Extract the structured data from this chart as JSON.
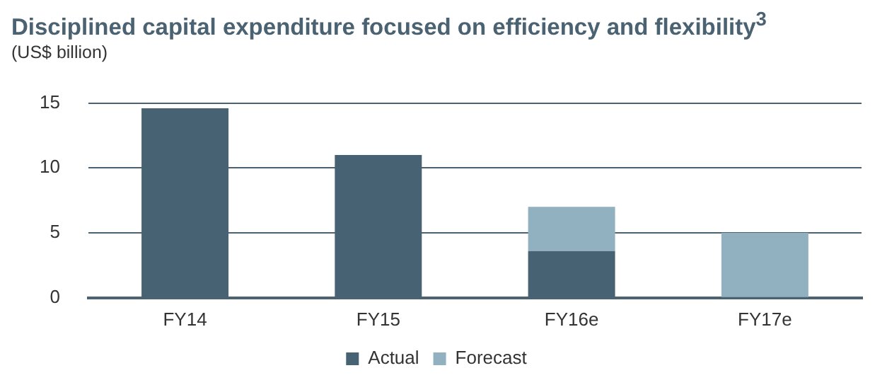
{
  "chart_data": {
    "type": "bar",
    "title": "Disciplined capital expenditure focused on efficiency and flexibility$^{3}$",
    "ylabel": "(US$ billion)",
    "categories": [
      "FY14",
      "FY15",
      "FY16e",
      "FY17e"
    ],
    "series": [
      {
        "name": "Actual",
        "color": "#476373",
        "values": [
          14.6,
          11.0,
          3.6,
          null
        ]
      },
      {
        "name": "Forecast",
        "color": "#91b0c0",
        "values": [
          null,
          null,
          3.4,
          5.0
        ]
      }
    ],
    "stacked": true,
    "ylim": [
      0,
      15
    ],
    "yticks": [
      0,
      5,
      10,
      15
    ],
    "grid": "y",
    "legend": "bottom"
  }
}
